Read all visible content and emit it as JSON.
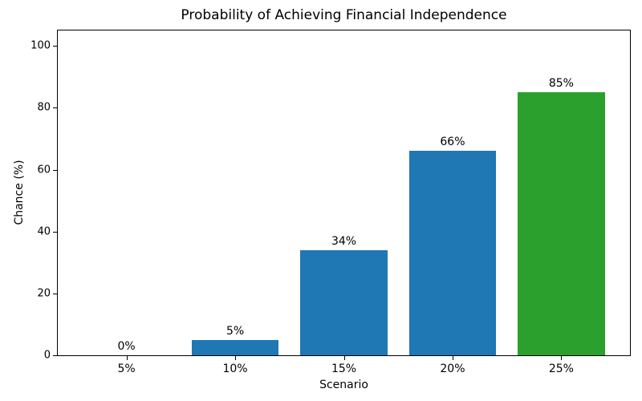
{
  "chart_data": {
    "type": "bar",
    "title": "Probability of Achieving Financial Independence",
    "xlabel": "Scenario",
    "ylabel": "Chance (%)",
    "categories": [
      "5%",
      "10%",
      "15%",
      "20%",
      "25%"
    ],
    "values": [
      0,
      5,
      34,
      66,
      85
    ],
    "bar_labels": [
      "0%",
      "5%",
      "34%",
      "66%",
      "85%"
    ],
    "bar_colors": [
      "#1f77b4",
      "#1f77b4",
      "#1f77b4",
      "#1f77b4",
      "#2ca02c"
    ],
    "colors": {
      "blue": "#1f77b4",
      "green": "#2ca02c",
      "axis": "#000000",
      "background": "#ffffff"
    },
    "ylim": [
      0,
      105
    ],
    "yticks": [
      0,
      20,
      40,
      60,
      80,
      100
    ],
    "grid": false,
    "legend_position": "none",
    "bar_width_fraction": 0.8
  }
}
